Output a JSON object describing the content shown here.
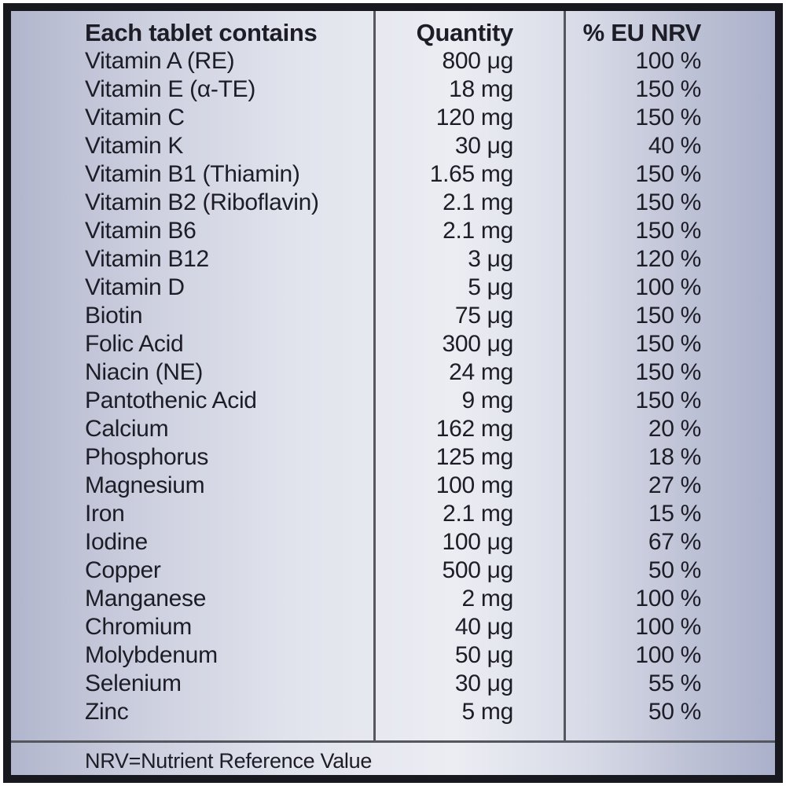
{
  "table": {
    "header": {
      "nutrient": "Each tablet contains",
      "quantity": "Quantity",
      "nrv": "% EU NRV"
    },
    "rows": [
      {
        "nutrient": "Vitamin A (RE)",
        "quantity": "800 μg",
        "nrv": "100 %"
      },
      {
        "nutrient": "Vitamin E (α-TE)",
        "quantity": "18 mg",
        "nrv": "150 %"
      },
      {
        "nutrient": "Vitamin C",
        "quantity": "120 mg",
        "nrv": "150 %"
      },
      {
        "nutrient": "Vitamin K",
        "quantity": "30 μg",
        "nrv": "40 %"
      },
      {
        "nutrient": "Vitamin B1 (Thiamin)",
        "quantity": "1.65 mg",
        "nrv": "150 %"
      },
      {
        "nutrient": "Vitamin B2 (Riboflavin)",
        "quantity": "2.1 mg",
        "nrv": "150 %"
      },
      {
        "nutrient": "Vitamin B6",
        "quantity": "2.1 mg",
        "nrv": "150 %"
      },
      {
        "nutrient": "Vitamin B12",
        "quantity": "3 μg",
        "nrv": "120 %"
      },
      {
        "nutrient": "Vitamin D",
        "quantity": "5 μg",
        "nrv": "100 %"
      },
      {
        "nutrient": "Biotin",
        "quantity": "75 μg",
        "nrv": "150 %"
      },
      {
        "nutrient": "Folic Acid",
        "quantity": "300 μg",
        "nrv": "150 %"
      },
      {
        "nutrient": "Niacin (NE)",
        "quantity": "24 mg",
        "nrv": "150 %"
      },
      {
        "nutrient": "Pantothenic Acid",
        "quantity": "9 mg",
        "nrv": "150 %"
      },
      {
        "nutrient": "Calcium",
        "quantity": "162 mg",
        "nrv": "20 %"
      },
      {
        "nutrient": "Phosphorus",
        "quantity": "125 mg",
        "nrv": "18 %"
      },
      {
        "nutrient": "Magnesium",
        "quantity": "100 mg",
        "nrv": "27 %"
      },
      {
        "nutrient": "Iron",
        "quantity": "2.1 mg",
        "nrv": "15 %"
      },
      {
        "nutrient": "Iodine",
        "quantity": "100 μg",
        "nrv": "67 %"
      },
      {
        "nutrient": "Copper",
        "quantity": "500 μg",
        "nrv": "50 %"
      },
      {
        "nutrient": "Manganese",
        "quantity": "2 mg",
        "nrv": "100 %"
      },
      {
        "nutrient": "Chromium",
        "quantity": "40 μg",
        "nrv": "100 %"
      },
      {
        "nutrient": "Molybdenum",
        "quantity": "50 μg",
        "nrv": "100 %"
      },
      {
        "nutrient": "Selenium",
        "quantity": "30 μg",
        "nrv": "55 %"
      },
      {
        "nutrient": "Zinc",
        "quantity": "5 mg",
        "nrv": "50 %"
      }
    ],
    "footnote": "NRV=Nutrient Reference Value"
  },
  "colors": {
    "frame_border": "#18181f",
    "divider_gray": "#56565f",
    "text": "#1d1d27",
    "background_left": "#b2b6cd",
    "background_center": "#ecedf3",
    "background_right": "#abb0cb"
  }
}
